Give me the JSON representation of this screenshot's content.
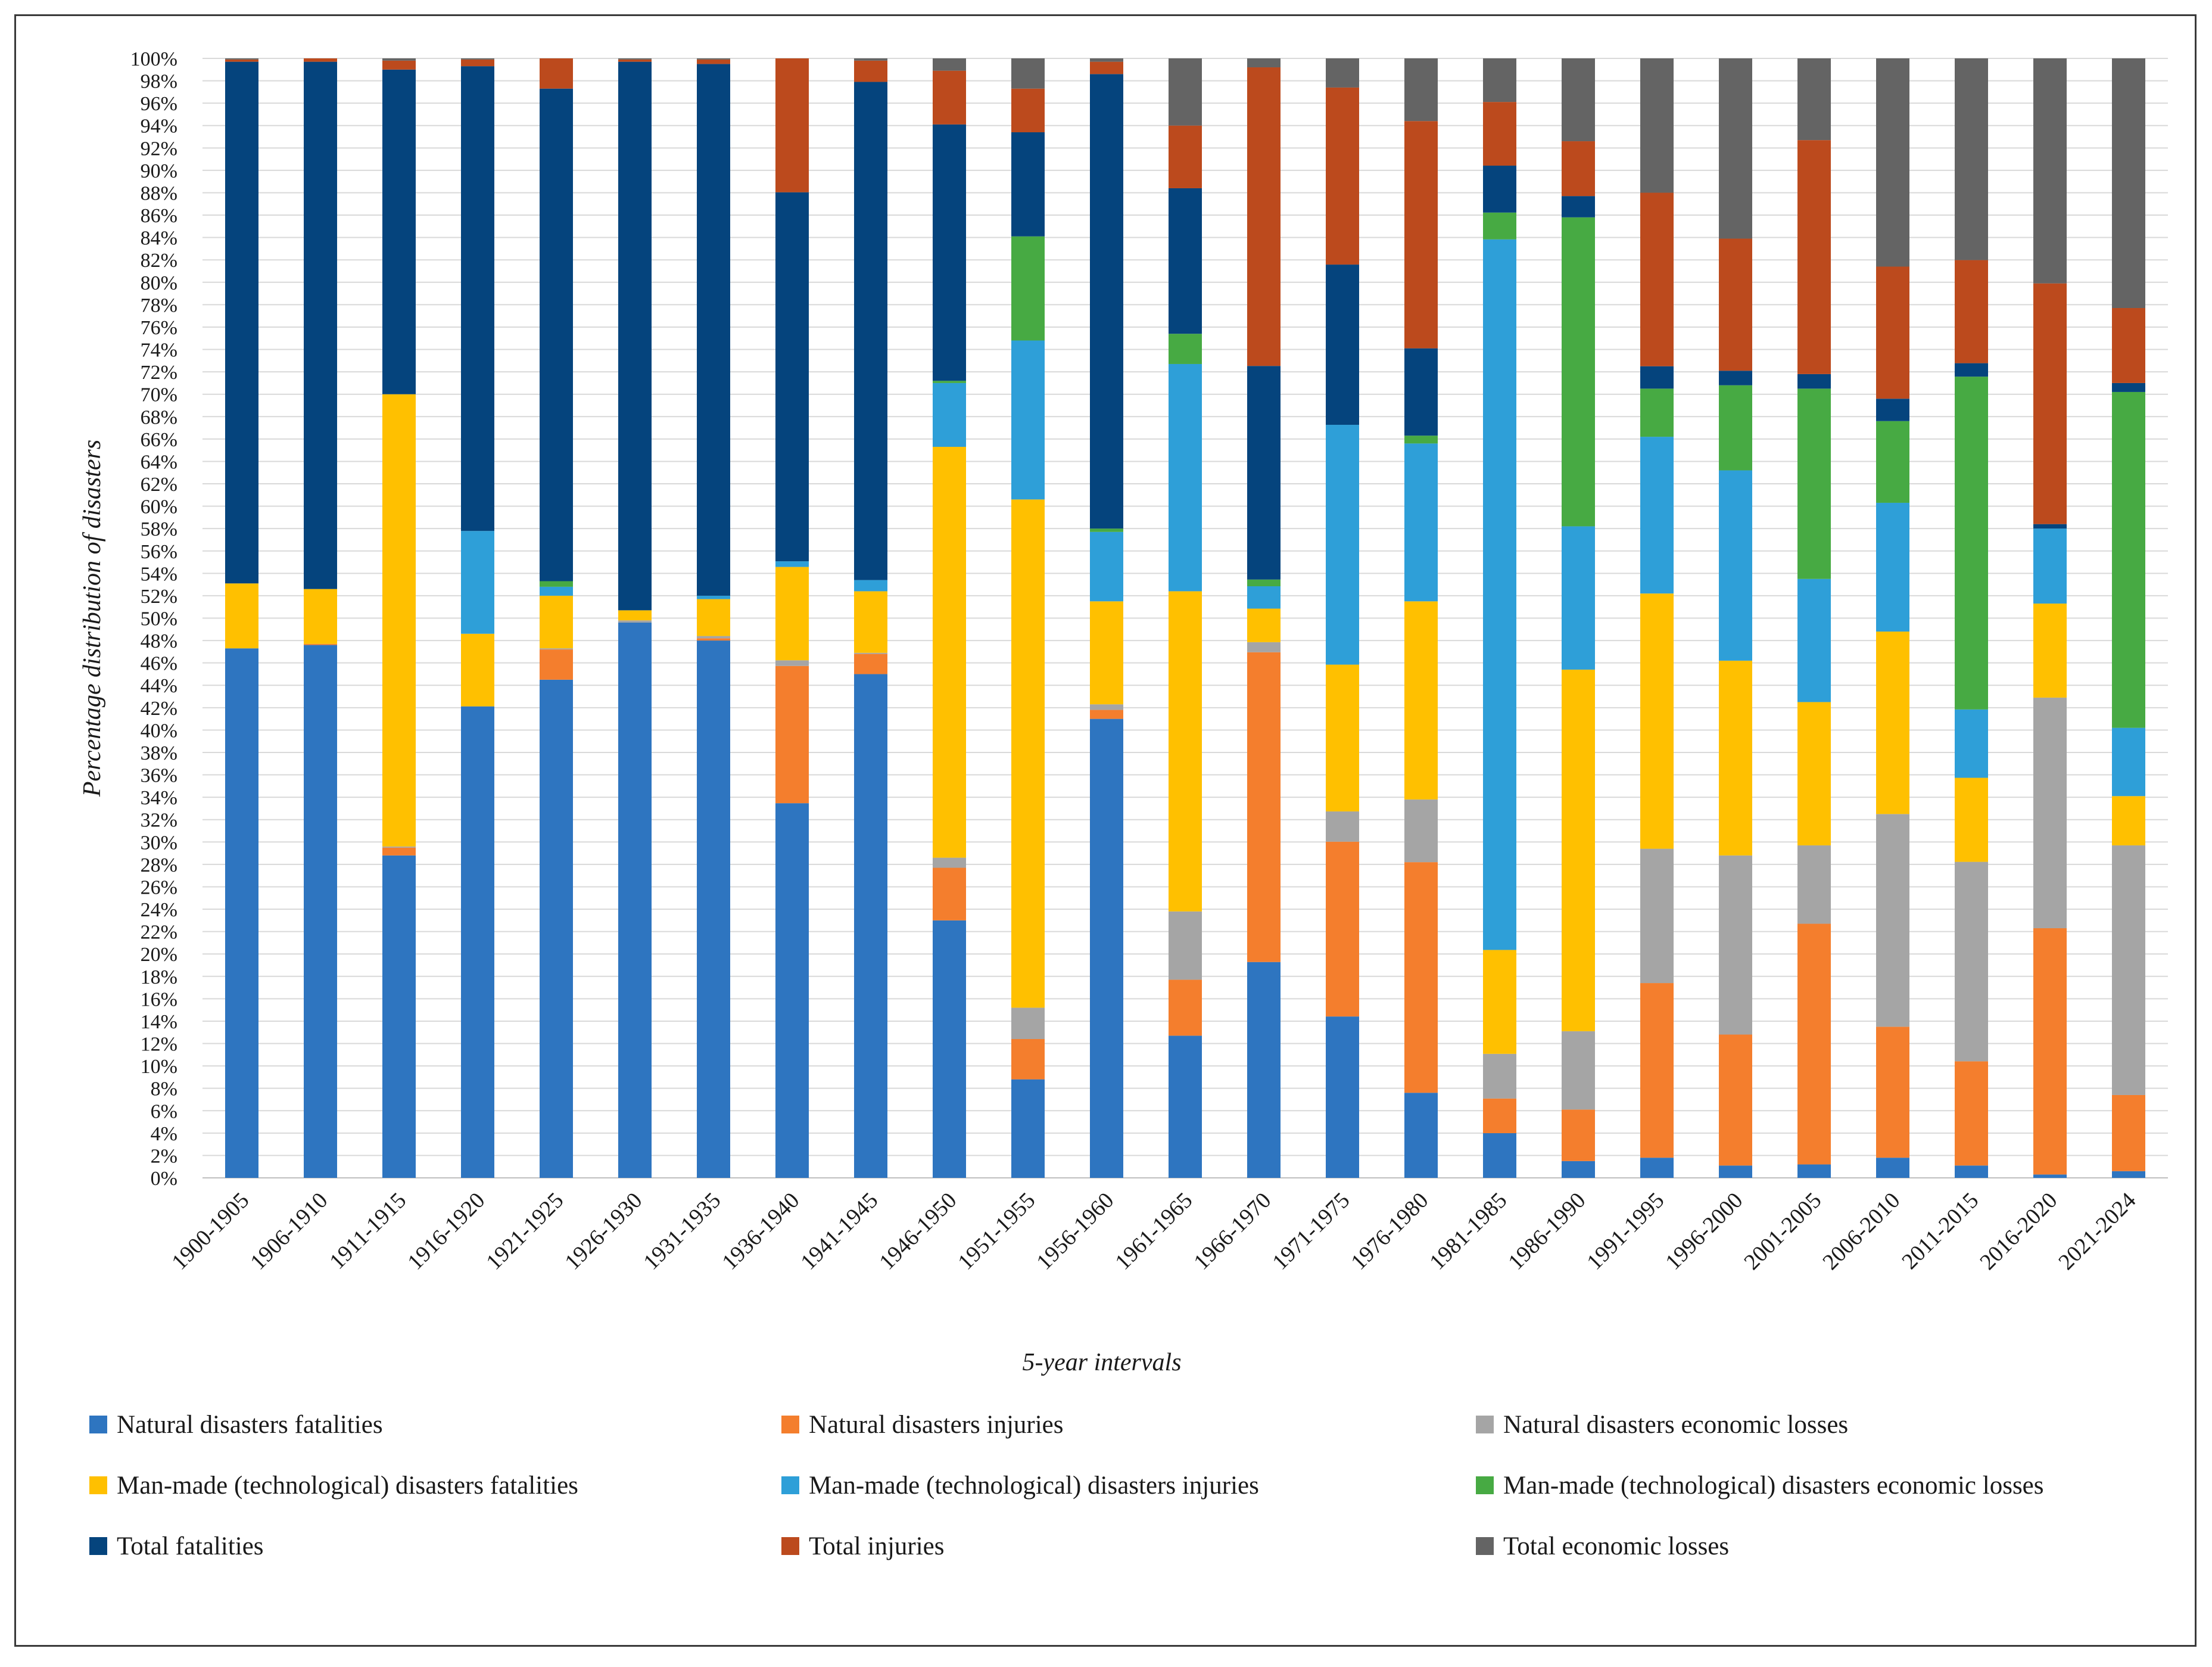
{
  "chart_data": {
    "type": "bar",
    "stacked": true,
    "percent": true,
    "title": "",
    "xlabel": "5-year intervals",
    "ylabel": "Percentage distribution of disasters",
    "ylim": [
      0,
      100
    ],
    "ytick_step": 2,
    "ytick_labels": [
      "0%",
      "2%",
      "4%",
      "6%",
      "8%",
      "10%",
      "12%",
      "14%",
      "16%",
      "18%",
      "20%",
      "22%",
      "24%",
      "26%",
      "28%",
      "30%",
      "32%",
      "34%",
      "36%",
      "38%",
      "40%",
      "42%",
      "44%",
      "46%",
      "48%",
      "50%",
      "52%",
      "54%",
      "56%",
      "58%",
      "60%",
      "62%",
      "64%",
      "66%",
      "68%",
      "70%",
      "72%",
      "74%",
      "76%",
      "78%",
      "80%",
      "82%",
      "84%",
      "86%",
      "88%",
      "90%",
      "92%",
      "94%",
      "96%",
      "98%",
      "100%"
    ],
    "grid": true,
    "legend_position": "bottom",
    "categories": [
      "1900-1905",
      "1906-1910",
      "1911-1915",
      "1916-1920",
      "1921-1925",
      "1926-1930",
      "1931-1935",
      "1936-1940",
      "1941-1945",
      "1946-1950",
      "1951-1955",
      "1956-1960",
      "1961-1965",
      "1966-1970",
      "1971-1975",
      "1976-1980",
      "1981-1985",
      "1986-1990",
      "1991-1995",
      "1996-2000",
      "2001-2005",
      "2006-2010",
      "2011-2015",
      "2016-2020",
      "2021-2024"
    ],
    "series": [
      {
        "name": "Natural disasters fatalities",
        "color": "#2E75C0",
        "values": [
          47.3,
          47.6,
          28.8,
          42.2,
          44.5,
          49.6,
          48.0,
          33.3,
          45.0,
          23.0,
          8.8,
          41.0,
          12.7,
          19.3,
          14.4,
          7.6,
          4.0,
          1.5,
          1.8,
          1.1,
          1.2,
          1.8,
          1.1,
          0.3,
          0.6
        ]
      },
      {
        "name": "Natural disasters injuries",
        "color": "#F47E2D",
        "values": [
          0.0,
          0.1,
          0.7,
          0.0,
          2.7,
          0.0,
          0.2,
          12.2,
          1.8,
          4.7,
          3.6,
          0.8,
          5.0,
          27.7,
          15.6,
          20.6,
          3.1,
          4.6,
          15.6,
          11.7,
          21.5,
          11.7,
          9.3,
          22.0,
          6.8
        ]
      },
      {
        "name": "Natural disasters economic losses",
        "color": "#A5A5A5",
        "values": [
          0.0,
          0.0,
          0.1,
          0.0,
          0.1,
          0.2,
          0.2,
          0.5,
          0.1,
          0.9,
          2.8,
          0.5,
          6.1,
          0.9,
          2.7,
          5.6,
          4.0,
          7.0,
          12.0,
          16.0,
          7.0,
          19.0,
          17.8,
          20.6,
          22.3
        ]
      },
      {
        "name": "Man-made (technological) disasters fatalities",
        "color": "#FFC000",
        "values": [
          5.8,
          4.9,
          40.4,
          6.5,
          4.7,
          0.9,
          3.3,
          8.3,
          5.5,
          36.7,
          45.4,
          9.2,
          28.6,
          3.0,
          13.1,
          17.7,
          9.3,
          32.3,
          22.8,
          17.4,
          12.8,
          16.3,
          7.5,
          8.4,
          4.4
        ]
      },
      {
        "name": "Man-made (technological) disasters injuries",
        "color": "#2E9FD8",
        "values": [
          0.0,
          0.0,
          0.0,
          9.2,
          0.8,
          0.0,
          0.3,
          0.5,
          1.0,
          5.7,
          14.2,
          6.2,
          20.3,
          2.0,
          21.4,
          14.1,
          63.6,
          12.8,
          14.0,
          17.0,
          11.0,
          11.5,
          6.1,
          6.7,
          6.1
        ]
      },
      {
        "name": "Man-made (technological) disasters economic  losses",
        "color": "#47AA43",
        "values": [
          0.0,
          0.0,
          0.0,
          0.0,
          0.5,
          0.0,
          0.0,
          0.0,
          0.0,
          0.2,
          9.3,
          0.3,
          2.7,
          0.6,
          0.0,
          0.7,
          2.4,
          27.6,
          4.3,
          7.6,
          17.0,
          7.3,
          29.7,
          0.0,
          30.0
        ]
      },
      {
        "name": "Total fatalities",
        "color": "#05447D",
        "values": [
          46.6,
          47.1,
          29.0,
          41.6,
          44.0,
          49.0,
          47.5,
          32.8,
          44.5,
          22.9,
          9.3,
          40.6,
          13.0,
          19.1,
          14.3,
          7.8,
          4.2,
          1.9,
          2.0,
          1.3,
          1.3,
          2.0,
          1.2,
          0.4,
          0.8
        ]
      },
      {
        "name": "Total injuries",
        "color": "#BC4A1D",
        "values": [
          0.2,
          0.3,
          0.8,
          0.6,
          2.7,
          0.2,
          0.4,
          11.9,
          1.9,
          4.8,
          3.9,
          1.1,
          5.6,
          26.7,
          15.8,
          20.3,
          5.7,
          4.9,
          15.5,
          11.8,
          20.9,
          11.8,
          9.2,
          21.5,
          6.7
        ]
      },
      {
        "name": "Total economic  losses",
        "color": "#646464",
        "values": [
          0.1,
          0.0,
          0.2,
          0.1,
          0.0,
          0.1,
          0.1,
          0.0,
          0.2,
          1.1,
          2.7,
          0.3,
          6.0,
          0.8,
          2.6,
          5.6,
          3.9,
          7.4,
          12.0,
          16.1,
          7.3,
          18.6,
          18.0,
          20.1,
          22.3
        ]
      }
    ]
  }
}
